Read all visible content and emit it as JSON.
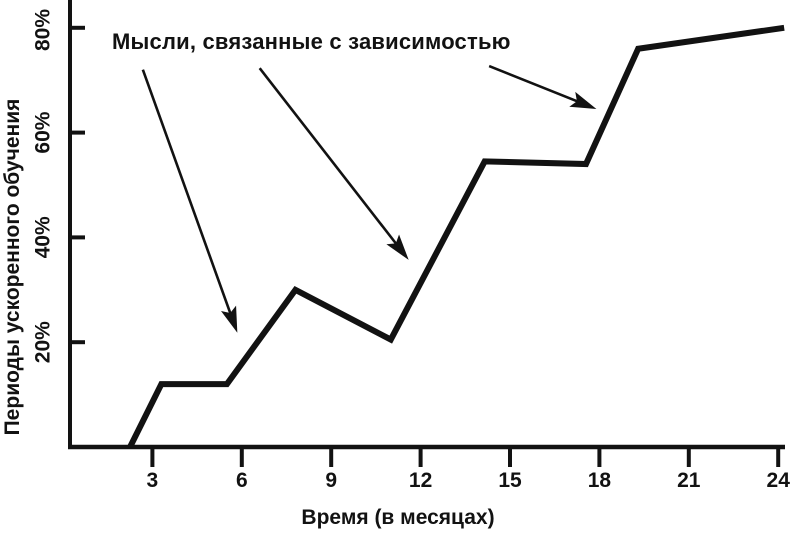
{
  "figure": {
    "background": "#ffffff",
    "ink": "#121212"
  },
  "chart_data": {
    "type": "line",
    "title": "",
    "xlabel": "Время (в месяцах)",
    "ylabel": "Периоды ускоренного обучения",
    "x_tick_labels": [
      "3",
      "6",
      "9",
      "12",
      "15",
      "18",
      "21",
      "24"
    ],
    "x_tick_values": [
      3,
      6,
      9,
      12,
      15,
      18,
      21,
      24
    ],
    "y_tick_labels": [
      "20%",
      "40%",
      "60%",
      "80%"
    ],
    "y_tick_values": [
      20,
      40,
      60,
      80
    ],
    "xlim": [
      0,
      24.3
    ],
    "ylim": [
      0,
      86
    ],
    "grid": false,
    "legend": false,
    "series": [
      {
        "name": "Периоды ускоренного обучения",
        "x": [
          2.25,
          3.3,
          5.5,
          7.8,
          11.0,
          14.15,
          17.55,
          19.3,
          24.2
        ],
        "y": [
          0,
          12,
          12,
          30,
          20.5,
          54.5,
          54,
          76,
          80
        ]
      }
    ],
    "annotation": {
      "text": "Мысли, связанные с зависимостью",
      "arrows": [
        {
          "from": [
            2.68,
            72.0
          ],
          "to": [
            5.85,
            21.8
          ]
        },
        {
          "from": [
            6.6,
            72.3
          ],
          "to": [
            11.6,
            35.7
          ]
        },
        {
          "from": [
            14.3,
            72.7
          ],
          "to": [
            17.9,
            64.5
          ]
        }
      ]
    }
  }
}
